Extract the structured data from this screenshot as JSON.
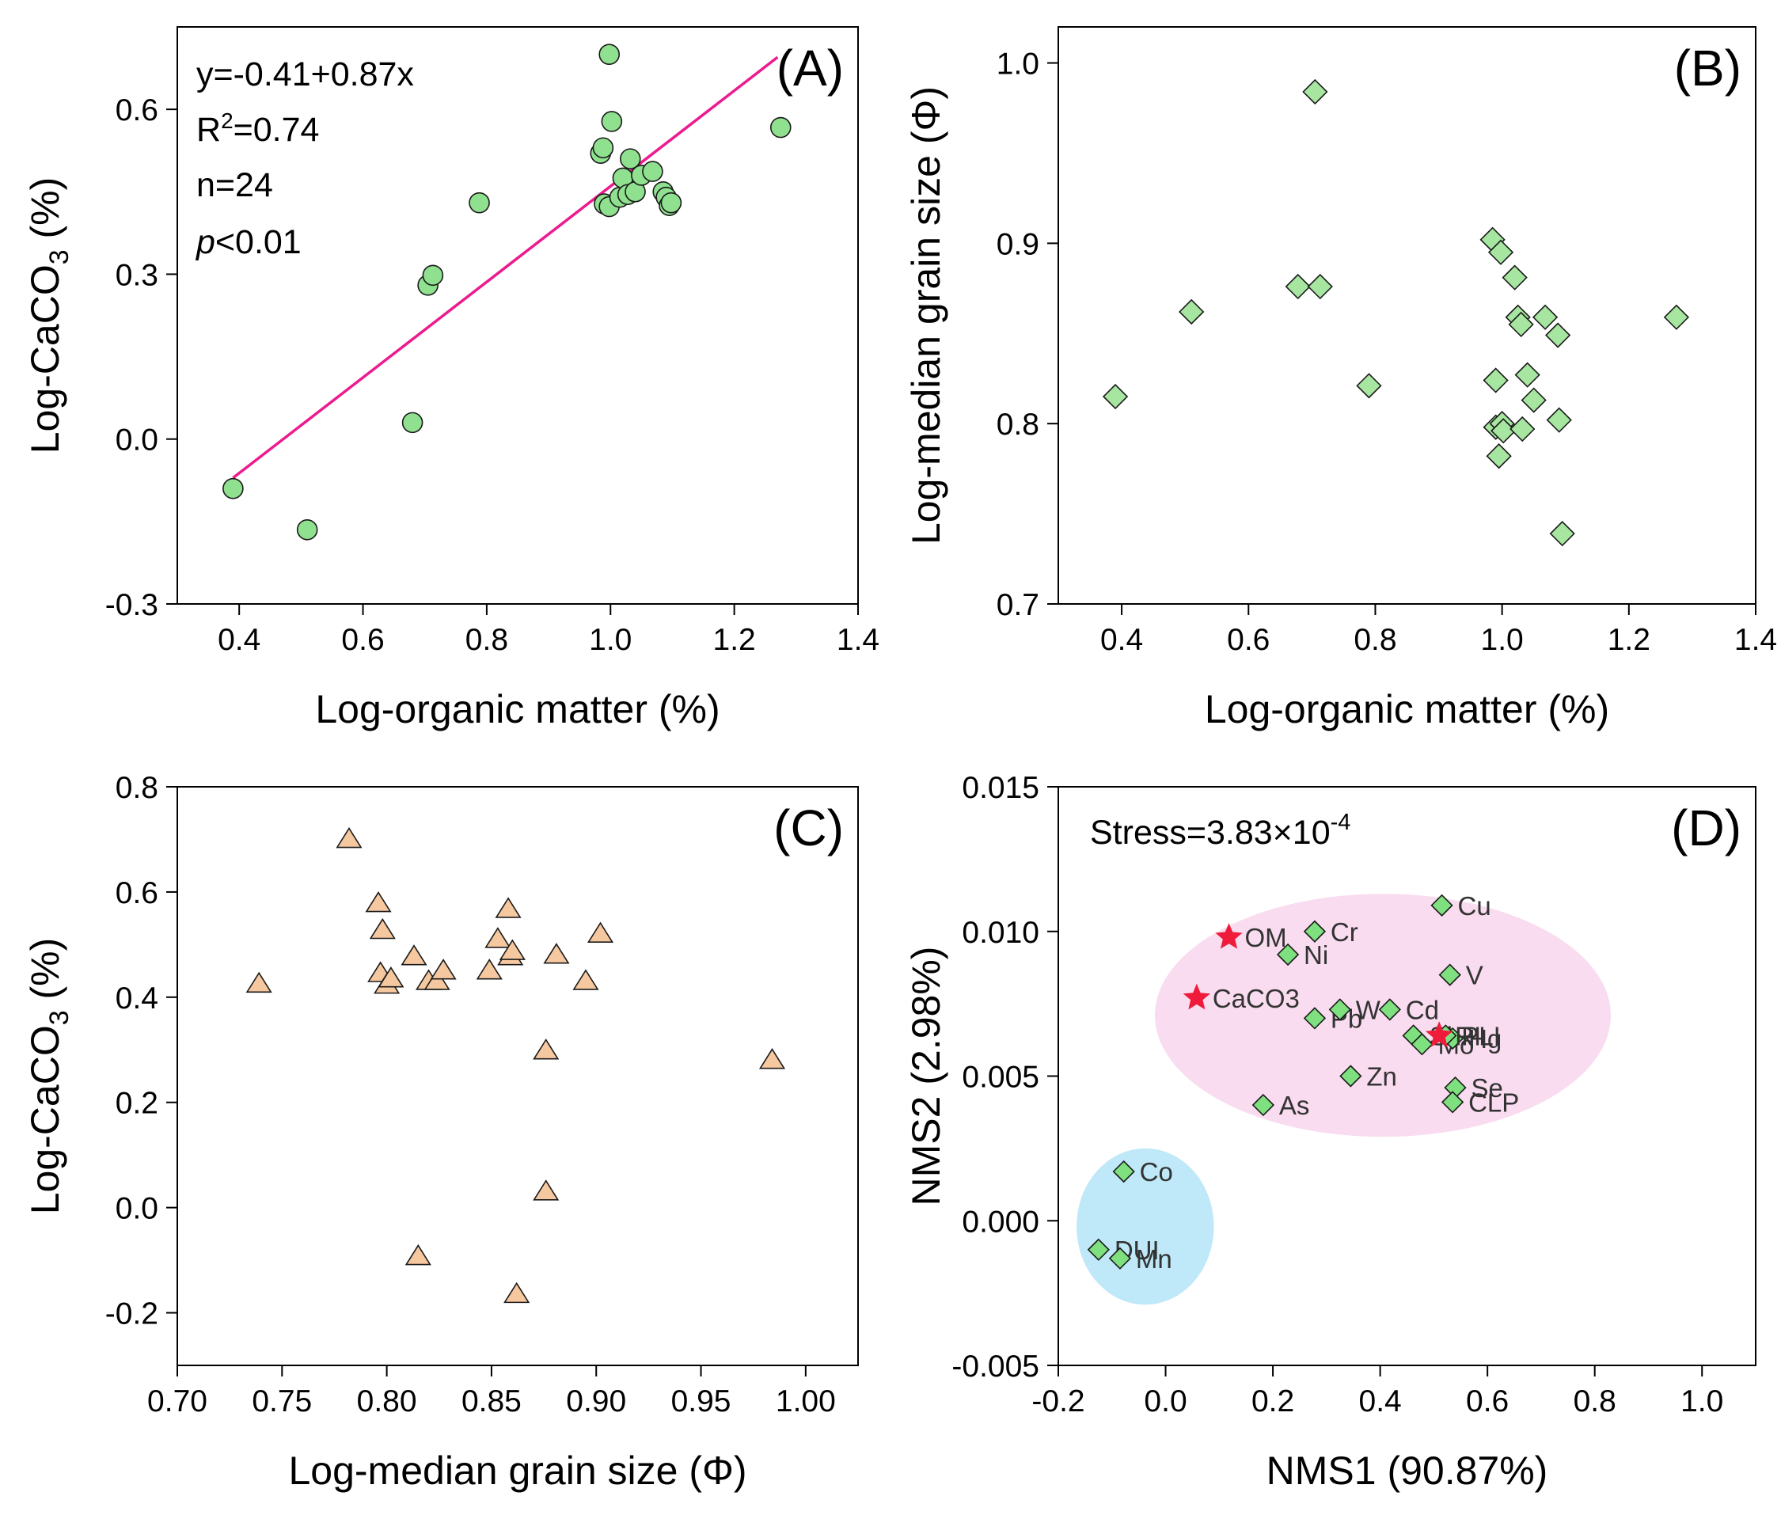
{
  "colors": {
    "green_point": "#8fe08f",
    "diamond_a": "#a6e6a0",
    "diamond_d": "#7fe07f",
    "triangle": "#f6c8a0",
    "regression_line": "#ec1b8f",
    "star": "#ee1c3a",
    "ellipse_pink": "#f9dcef",
    "ellipse_blue": "#bfe8f8"
  },
  "chart_data": [
    {
      "id": "A",
      "type": "scatter",
      "panel_tag": "(A)",
      "xlabel": "Log-organic matter (%)",
      "ylabel_main": "Log-CaCO",
      "ylabel_sub": "3",
      "ylabel_tail": " (%)",
      "xlim": [
        0.3,
        1.4
      ],
      "ylim": [
        -0.3,
        0.75
      ],
      "xticks": [
        0.4,
        0.6,
        0.8,
        1.0,
        1.2,
        1.4
      ],
      "xtick_labels": [
        "0.4",
        "0.6",
        "0.8",
        "1.0",
        "1.2",
        "1.4"
      ],
      "yticks": [
        -0.3,
        0.0,
        0.3,
        0.6
      ],
      "ytick_labels": [
        "-0.3",
        "0.0",
        "0.3",
        "0.6"
      ],
      "marker": "circle",
      "annotations": {
        "equation": "y=-0.41+0.87x",
        "r2_main": "R",
        "r2_sup": "2",
        "r2_value": "=0.74",
        "n": "n=24",
        "p_italic": "p",
        "p_value": "<0.01"
      },
      "regression": {
        "intercept": -0.41,
        "slope": 0.87,
        "x_range": [
          0.39,
          1.27
        ]
      },
      "points": [
        [
          0.39,
          -0.09
        ],
        [
          0.51,
          -0.165
        ],
        [
          0.68,
          0.03
        ],
        [
          0.705,
          0.28
        ],
        [
          0.713,
          0.298
        ],
        [
          0.788,
          0.43
        ],
        [
          0.984,
          0.52
        ],
        [
          0.988,
          0.53
        ],
        [
          0.99,
          0.428
        ],
        [
          0.998,
          0.7
        ],
        [
          0.998,
          0.423
        ],
        [
          1.002,
          0.578
        ],
        [
          1.015,
          0.44
        ],
        [
          1.02,
          0.475
        ],
        [
          1.028,
          0.445
        ],
        [
          1.032,
          0.51
        ],
        [
          1.04,
          0.45
        ],
        [
          1.05,
          0.48
        ],
        [
          1.068,
          0.487
        ],
        [
          1.085,
          0.45
        ],
        [
          1.09,
          0.44
        ],
        [
          1.095,
          0.425
        ],
        [
          1.098,
          0.43
        ],
        [
          1.275,
          0.567
        ]
      ]
    },
    {
      "id": "B",
      "type": "scatter",
      "panel_tag": "(B)",
      "xlabel": "Log-organic matter (%)",
      "ylabel": "Log-median grain size (Φ)",
      "xlim": [
        0.3,
        1.4
      ],
      "ylim": [
        0.7,
        1.02
      ],
      "xticks": [
        0.4,
        0.6,
        0.8,
        1.0,
        1.2,
        1.4
      ],
      "xtick_labels": [
        "0.4",
        "0.6",
        "0.8",
        "1.0",
        "1.2",
        "1.4"
      ],
      "yticks": [
        0.7,
        0.8,
        0.9,
        1.0
      ],
      "ytick_labels": [
        "0.7",
        "0.8",
        "0.9",
        "1.0"
      ],
      "marker": "diamond",
      "points": [
        [
          0.39,
          0.815
        ],
        [
          0.51,
          0.862
        ],
        [
          0.678,
          0.876
        ],
        [
          0.705,
          0.984
        ],
        [
          0.713,
          0.876
        ],
        [
          0.79,
          0.821
        ],
        [
          0.985,
          0.902
        ],
        [
          0.99,
          0.824
        ],
        [
          0.99,
          0.798
        ],
        [
          0.995,
          0.782
        ],
        [
          0.998,
          0.895
        ],
        [
          1.0,
          0.8
        ],
        [
          1.002,
          0.796
        ],
        [
          1.02,
          0.881
        ],
        [
          1.025,
          0.859
        ],
        [
          1.03,
          0.855
        ],
        [
          1.032,
          0.797
        ],
        [
          1.04,
          0.827
        ],
        [
          1.05,
          0.813
        ],
        [
          1.068,
          0.859
        ],
        [
          1.088,
          0.849
        ],
        [
          1.09,
          0.802
        ],
        [
          1.095,
          0.739
        ],
        [
          1.275,
          0.859
        ]
      ]
    },
    {
      "id": "C",
      "type": "scatter",
      "panel_tag": "(C)",
      "xlabel": "Log-median grain size (Φ)",
      "ylabel_main": "Log-CaCO",
      "ylabel_sub": "3",
      "ylabel_tail": " (%)",
      "xlim": [
        0.7,
        1.025
      ],
      "ylim": [
        -0.3,
        0.8
      ],
      "xticks": [
        0.7,
        0.75,
        0.8,
        0.85,
        0.9,
        0.95,
        1.0
      ],
      "xtick_labels": [
        "0.70",
        "0.75",
        "0.80",
        "0.85",
        "0.90",
        "0.95",
        "1.00"
      ],
      "yticks": [
        -0.2,
        0.0,
        0.2,
        0.4,
        0.6,
        0.8
      ],
      "ytick_labels": [
        "-0.2",
        "0.0",
        "0.2",
        "0.4",
        "0.6",
        "0.8"
      ],
      "marker": "triangle",
      "points": [
        [
          0.739,
          0.425
        ],
        [
          0.782,
          0.7
        ],
        [
          0.796,
          0.578
        ],
        [
          0.797,
          0.445
        ],
        [
          0.798,
          0.527
        ],
        [
          0.8,
          0.423
        ],
        [
          0.802,
          0.435
        ],
        [
          0.813,
          0.477
        ],
        [
          0.815,
          -0.093
        ],
        [
          0.82,
          0.43
        ],
        [
          0.824,
          0.43
        ],
        [
          0.827,
          0.45
        ],
        [
          0.849,
          0.45
        ],
        [
          0.853,
          0.51
        ],
        [
          0.858,
          0.567
        ],
        [
          0.859,
          0.477
        ],
        [
          0.86,
          0.487
        ],
        [
          0.862,
          -0.165
        ],
        [
          0.876,
          0.298
        ],
        [
          0.876,
          0.03
        ],
        [
          0.881,
          0.48
        ],
        [
          0.895,
          0.43
        ],
        [
          0.902,
          0.52
        ],
        [
          0.984,
          0.28
        ]
      ]
    },
    {
      "id": "D",
      "type": "scatter",
      "panel_tag": "(D)",
      "xlabel": "NMS1 (90.87%)",
      "ylabel": "NMS2 (2.98%)",
      "xlim": [
        -0.2,
        1.1
      ],
      "ylim": [
        -0.005,
        0.015
      ],
      "xticks": [
        -0.2,
        0.0,
        0.2,
        0.4,
        0.6,
        0.8,
        1.0
      ],
      "xtick_labels": [
        "-0.2",
        "0.0",
        "0.2",
        "0.4",
        "0.6",
        "0.8",
        "1.0"
      ],
      "yticks": [
        -0.005,
        0.0,
        0.005,
        0.01,
        0.015
      ],
      "ytick_labels": [
        "-0.005",
        "0.000",
        "0.005",
        "0.010",
        "0.015"
      ],
      "stress_main": "Stress=3.83×10",
      "stress_exp": "-4",
      "ellipses": [
        {
          "cx": 0.405,
          "cy": 0.0071,
          "rx": 0.425,
          "ry": 0.0042,
          "color": "pink"
        },
        {
          "cx": -0.038,
          "cy": -0.0002,
          "rx": 0.128,
          "ry": 0.0027,
          "color": "blue"
        }
      ],
      "points": [
        {
          "label": "Cu",
          "x": 0.515,
          "y": 0.0109,
          "marker": "diamond"
        },
        {
          "label": "Cr",
          "x": 0.278,
          "y": 0.01,
          "marker": "diamond"
        },
        {
          "label": "Ni",
          "x": 0.228,
          "y": 0.0092,
          "marker": "diamond"
        },
        {
          "label": "V",
          "x": 0.53,
          "y": 0.0085,
          "marker": "diamond"
        },
        {
          "label": "Pb",
          "x": 0.278,
          "y": 0.007,
          "marker": "diamond"
        },
        {
          "label": "W",
          "x": 0.325,
          "y": 0.0073,
          "marker": "diamond"
        },
        {
          "label": "Cd",
          "x": 0.418,
          "y": 0.0073,
          "marker": "diamond"
        },
        {
          "label": "Sb",
          "x": 0.462,
          "y": 0.0064,
          "marker": "diamond"
        },
        {
          "label": "Mo",
          "x": 0.478,
          "y": 0.0061,
          "marker": "diamond"
        },
        {
          "label": "Hg",
          "x": 0.535,
          "y": 0.0063,
          "marker": "diamond"
        },
        {
          "label": "PLI",
          "x": 0.522,
          "y": 0.0064,
          "marker": "diamond"
        },
        {
          "label": "Zn",
          "x": 0.345,
          "y": 0.005,
          "marker": "diamond"
        },
        {
          "label": "Se",
          "x": 0.54,
          "y": 0.0046,
          "marker": "diamond"
        },
        {
          "label": "CLP",
          "x": 0.535,
          "y": 0.0041,
          "marker": "diamond"
        },
        {
          "label": "As",
          "x": 0.182,
          "y": 0.004,
          "marker": "diamond"
        },
        {
          "label": "Co",
          "x": -0.078,
          "y": 0.0017,
          "marker": "diamond"
        },
        {
          "label": "DUI",
          "x": -0.125,
          "y": -0.001,
          "marker": "diamond"
        },
        {
          "label": "Mn",
          "x": -0.085,
          "y": -0.0013,
          "marker": "diamond"
        },
        {
          "label": "OM",
          "x": 0.118,
          "y": 0.0098,
          "marker": "star"
        },
        {
          "label": "CaCO3",
          "x": 0.058,
          "y": 0.0077,
          "marker": "star"
        },
        {
          "label": "RI",
          "x": 0.51,
          "y": 0.0064,
          "marker": "star"
        }
      ]
    }
  ]
}
